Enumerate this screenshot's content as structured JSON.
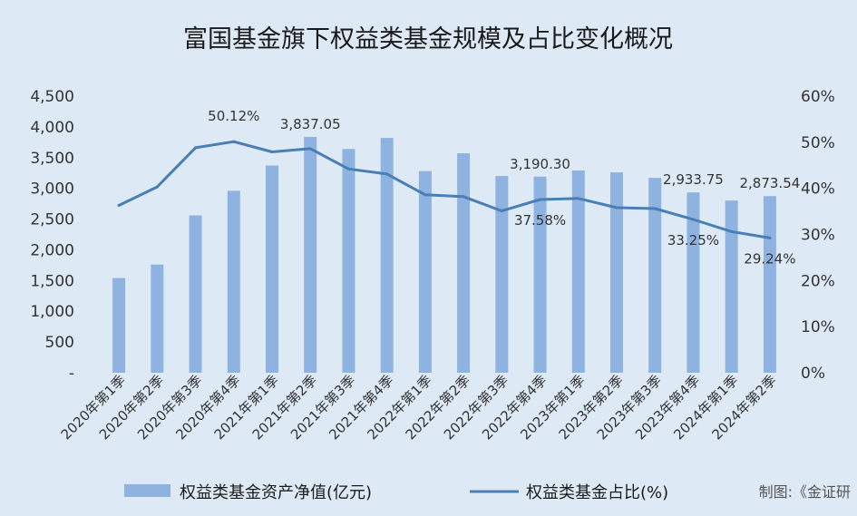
{
  "chart_data": {
    "type": "bar+line",
    "title": "富国基金旗下权益类基金规模及占比变化概况",
    "categories": [
      "2020年第1季",
      "2020年第2季",
      "2020年第3季",
      "2020年第4季",
      "2021年第1季",
      "2021年第2季",
      "2021年第3季",
      "2021年第4季",
      "2022年第1季",
      "2022年第2季",
      "2022年第3季",
      "2022年第4季",
      "2023年第1季",
      "2023年第2季",
      "2023年第3季",
      "2023年第4季",
      "2024年第1季",
      "2024年第2季"
    ],
    "series": [
      {
        "name": "权益类基金资产净值(亿元)",
        "type": "bar",
        "axis": "left",
        "color": "#8fb3e0",
        "values": [
          1540,
          1760,
          2560,
          2960,
          3370,
          3837.05,
          3640,
          3820,
          3280,
          3570,
          3200,
          3190.3,
          3290,
          3260,
          3170,
          2933.75,
          2800,
          2873.54
        ]
      },
      {
        "name": "权益类基金占比(%)",
        "type": "line",
        "axis": "right",
        "color": "#4a7fb5",
        "values": [
          36.3,
          40.3,
          48.8,
          50.12,
          47.9,
          48.6,
          44.2,
          43.1,
          38.6,
          38.2,
          35.1,
          37.58,
          37.8,
          35.8,
          35.6,
          33.25,
          30.6,
          29.24
        ]
      }
    ],
    "left_axis": {
      "ylim": [
        0,
        4500
      ],
      "ticks": [
        0,
        500,
        1000,
        1500,
        2000,
        2500,
        3000,
        3500,
        4000,
        4500
      ],
      "tick_labels": [
        "-",
        "500",
        "1,000",
        "1,500",
        "2,000",
        "2,500",
        "3,000",
        "3,500",
        "4,000",
        "4,500"
      ]
    },
    "right_axis": {
      "ylim": [
        0,
        60
      ],
      "ticks": [
        0,
        10,
        20,
        30,
        40,
        50,
        60
      ],
      "tick_labels": [
        "0%",
        "10%",
        "20%",
        "30%",
        "40%",
        "50%",
        "60%"
      ]
    },
    "bar_labels": [
      {
        "index": 5,
        "text": "3,837.05"
      },
      {
        "index": 11,
        "text": "3,190.30"
      },
      {
        "index": 15,
        "text": "2,933.75"
      },
      {
        "index": 17,
        "text": "2,873.54"
      }
    ],
    "line_labels": [
      {
        "index": 3,
        "text": "50.12%",
        "side": "above"
      },
      {
        "index": 11,
        "text": "37.58%",
        "side": "below"
      },
      {
        "index": 15,
        "text": "33.25%",
        "side": "below"
      },
      {
        "index": 17,
        "text": "29.24%",
        "side": "below"
      }
    ],
    "grid": false,
    "legend_position": "bottom"
  },
  "credit": "制图:《金证研"
}
